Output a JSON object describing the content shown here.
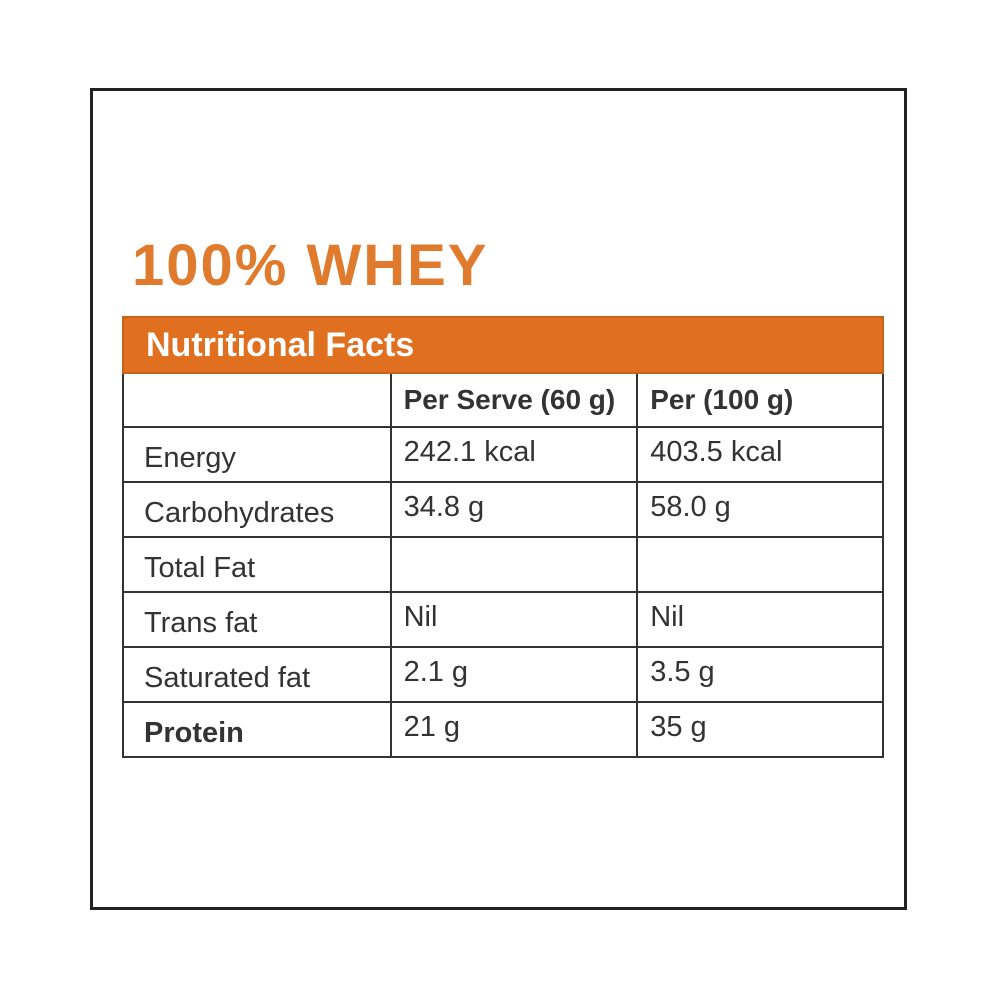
{
  "title": "100% WHEY",
  "table": {
    "caption": "Nutritional Facts",
    "columns": [
      "Per Serve (60 g)",
      "Per (100 g)"
    ],
    "rows": [
      {
        "label": "Energy",
        "values": [
          "242.1 kcal",
          "403.5 kcal"
        ]
      },
      {
        "label": "Carbohydrates",
        "values": [
          "34.8 g",
          "58.0 g"
        ]
      },
      {
        "label": "Total Fat"
      },
      {
        "label": "Trans fat",
        "values": [
          "Nil",
          "Nil"
        ]
      },
      {
        "label": "Saturated fat",
        "values": [
          "2.1 g",
          "3.5 g"
        ]
      },
      {
        "label": "Protein",
        "values": [
          "21 g",
          "35 g"
        ],
        "bold": true
      }
    ]
  }
}
